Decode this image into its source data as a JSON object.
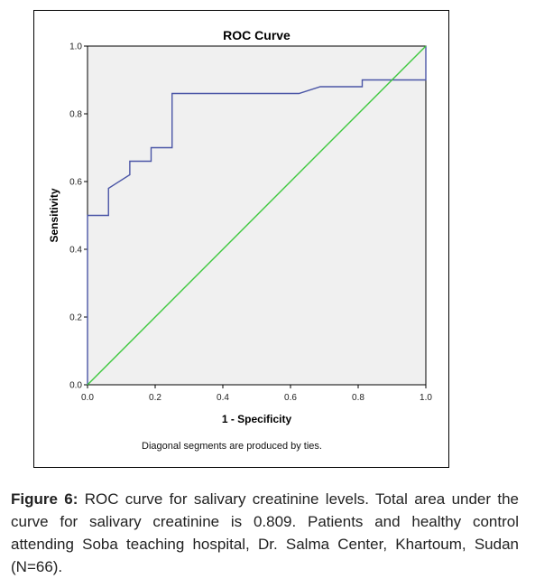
{
  "chart_data": {
    "type": "line",
    "title": "ROC Curve",
    "xlabel": "1 - Specificity",
    "ylabel": "Sensitivity",
    "xlim": [
      0,
      1
    ],
    "ylim": [
      0,
      1
    ],
    "x_ticks": [
      "0.0",
      "0.2",
      "0.4",
      "0.6",
      "0.8",
      "1.0"
    ],
    "y_ticks": [
      "0.0",
      "0.2",
      "0.4",
      "0.6",
      "0.8",
      "1.0"
    ],
    "grid": false,
    "note": "Diagonal segments are produced by ties.",
    "series": [
      {
        "color": "#4a55a6",
        "x": [
          0.0,
          0.0,
          0.062,
          0.062,
          0.125,
          0.125,
          0.188,
          0.188,
          0.25,
          0.25,
          0.625,
          0.688,
          0.812,
          0.812,
          1.0,
          1.0
        ],
        "y": [
          0.0,
          0.5,
          0.5,
          0.58,
          0.62,
          0.66,
          0.66,
          0.7,
          0.7,
          0.86,
          0.86,
          0.88,
          0.88,
          0.9,
          0.9,
          1.0
        ]
      },
      {
        "color": "#3ec83e",
        "x": [
          0,
          1
        ],
        "y": [
          0,
          1
        ]
      }
    ]
  },
  "caption": {
    "label": "Figure 6:",
    "text": " ROC curve for salivary creatinine levels. Total area under the curve for salivary creatinine is 0.809. Patients and healthy control attending Soba teaching hospital, Dr. Salma Center, Khartoum, Sudan (N=66)."
  }
}
